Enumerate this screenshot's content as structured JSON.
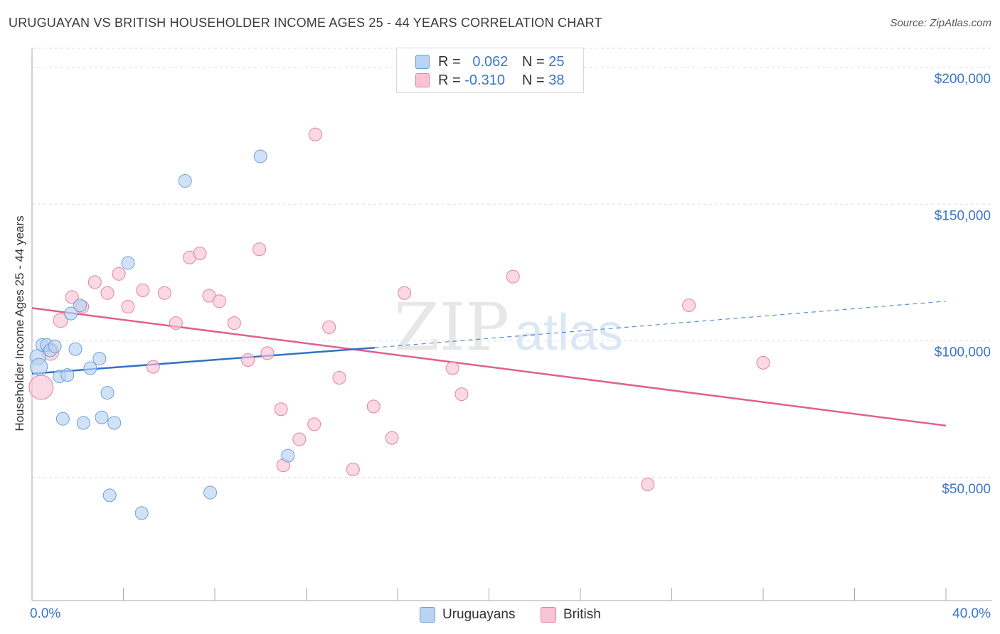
{
  "title": "URUGUAYAN VS BRITISH HOUSEHOLDER INCOME AGES 25 - 44 YEARS CORRELATION CHART",
  "source": "Source: ZipAtlas.com",
  "watermark": {
    "zip": "ZIP",
    "atlas": "atlas"
  },
  "colors": {
    "blue_fill": "#b9d3f2",
    "blue_stroke": "#6d9fd8",
    "blue_line": "#3272c4",
    "pink_fill": "#f8c4d5",
    "pink_stroke": "#e87fa2",
    "pink_line": "#e0608e",
    "axis_text": "#3b75c9",
    "grid": "#dddddd"
  },
  "legend_top": [
    {
      "r_label": "R =",
      "r_value": "0.062",
      "n_label": "N =",
      "n_value": "25"
    },
    {
      "r_label": "R =",
      "r_value": "-0.310",
      "n_label": "N =",
      "n_value": "38"
    }
  ],
  "legend_bottom": [
    "Uruguayans",
    "British"
  ],
  "chart_data": {
    "type": "scatter",
    "title": "URUGUAYAN VS BRITISH HOUSEHOLDER INCOME AGES 25 - 44 YEARS CORRELATION CHART",
    "xlabel": "",
    "ylabel": "Householder Income Ages 25 - 44 years",
    "xlim": [
      0,
      40
    ],
    "ylim": [
      5000,
      207000
    ],
    "x_tick_labels": [
      "0.0%",
      "40.0%"
    ],
    "y_ticks": [
      {
        "value": 200000,
        "label": "$200,000"
      },
      {
        "value": 150000,
        "label": "$150,000"
      },
      {
        "value": 100000,
        "label": "$100,000"
      },
      {
        "value": 50000,
        "label": "$50,000"
      }
    ],
    "grid": true,
    "series": [
      {
        "name": "Uruguayans",
        "r": 0.062,
        "n": 25,
        "trend": {
          "x0": 0,
          "y0": 88000,
          "x1": 15.0,
          "y1": 97500,
          "dash_x1": 40,
          "dash_y1": 114500
        },
        "points": [
          {
            "x": 0.25,
            "y": 94000,
            "r": 11
          },
          {
            "x": 0.3,
            "y": 90500,
            "r": 12
          },
          {
            "x": 0.45,
            "y": 98500,
            "r": 9
          },
          {
            "x": 0.65,
            "y": 98500,
            "r": 9
          },
          {
            "x": 0.8,
            "y": 96500,
            "r": 9
          },
          {
            "x": 1.0,
            "y": 98000,
            "r": 9
          },
          {
            "x": 1.2,
            "y": 87000,
            "r": 9
          },
          {
            "x": 1.35,
            "y": 71500,
            "r": 9
          },
          {
            "x": 1.55,
            "y": 87500,
            "r": 9
          },
          {
            "x": 1.7,
            "y": 110000,
            "r": 9
          },
          {
            "x": 1.9,
            "y": 97000,
            "r": 9
          },
          {
            "x": 2.1,
            "y": 113000,
            "r": 9
          },
          {
            "x": 2.25,
            "y": 70000,
            "r": 9
          },
          {
            "x": 2.55,
            "y": 90000,
            "r": 9
          },
          {
            "x": 2.95,
            "y": 93500,
            "r": 9
          },
          {
            "x": 3.05,
            "y": 72000,
            "r": 9
          },
          {
            "x": 3.3,
            "y": 81000,
            "r": 9
          },
          {
            "x": 3.4,
            "y": 43500,
            "r": 9
          },
          {
            "x": 3.6,
            "y": 70000,
            "r": 9
          },
          {
            "x": 4.2,
            "y": 128500,
            "r": 9
          },
          {
            "x": 4.8,
            "y": 37000,
            "r": 9
          },
          {
            "x": 6.7,
            "y": 158500,
            "r": 9
          },
          {
            "x": 7.8,
            "y": 44500,
            "r": 9
          },
          {
            "x": 10.0,
            "y": 167500,
            "r": 9
          },
          {
            "x": 11.2,
            "y": 58000,
            "r": 9
          }
        ]
      },
      {
        "name": "British",
        "r": -0.31,
        "n": 38,
        "trend": {
          "x0": 0,
          "y0": 112000,
          "x1": 40,
          "y1": 69000
        },
        "points": [
          {
            "x": 0.4,
            "y": 83000,
            "r": 17
          },
          {
            "x": 0.8,
            "y": 96000,
            "r": 12
          },
          {
            "x": 1.25,
            "y": 107500,
            "r": 10
          },
          {
            "x": 1.75,
            "y": 116000,
            "r": 9
          },
          {
            "x": 2.2,
            "y": 112500,
            "r": 9
          },
          {
            "x": 2.75,
            "y": 121500,
            "r": 9
          },
          {
            "x": 3.3,
            "y": 117500,
            "r": 9
          },
          {
            "x": 3.8,
            "y": 124500,
            "r": 9
          },
          {
            "x": 4.2,
            "y": 112500,
            "r": 9
          },
          {
            "x": 4.85,
            "y": 118500,
            "r": 9
          },
          {
            "x": 5.3,
            "y": 90500,
            "r": 9
          },
          {
            "x": 5.8,
            "y": 117500,
            "r": 9
          },
          {
            "x": 6.3,
            "y": 106500,
            "r": 9
          },
          {
            "x": 6.9,
            "y": 130500,
            "r": 9
          },
          {
            "x": 7.35,
            "y": 132000,
            "r": 9
          },
          {
            "x": 7.75,
            "y": 116500,
            "r": 9
          },
          {
            "x": 8.2,
            "y": 114500,
            "r": 9
          },
          {
            "x": 8.85,
            "y": 106500,
            "r": 9
          },
          {
            "x": 9.45,
            "y": 93000,
            "r": 9
          },
          {
            "x": 9.95,
            "y": 133500,
            "r": 9
          },
          {
            "x": 10.3,
            "y": 95500,
            "r": 9
          },
          {
            "x": 10.9,
            "y": 75000,
            "r": 9
          },
          {
            "x": 11.0,
            "y": 54500,
            "r": 9
          },
          {
            "x": 11.7,
            "y": 64000,
            "r": 9
          },
          {
            "x": 12.35,
            "y": 69500,
            "r": 9
          },
          {
            "x": 12.4,
            "y": 175500,
            "r": 9
          },
          {
            "x": 13.0,
            "y": 105000,
            "r": 9
          },
          {
            "x": 13.45,
            "y": 86500,
            "r": 9
          },
          {
            "x": 14.05,
            "y": 53000,
            "r": 9
          },
          {
            "x": 14.95,
            "y": 76000,
            "r": 9
          },
          {
            "x": 15.75,
            "y": 64500,
            "r": 9
          },
          {
            "x": 16.3,
            "y": 117500,
            "r": 9
          },
          {
            "x": 18.4,
            "y": 90000,
            "r": 9
          },
          {
            "x": 18.8,
            "y": 80500,
            "r": 9
          },
          {
            "x": 21.05,
            "y": 123500,
            "r": 9
          },
          {
            "x": 26.95,
            "y": 47500,
            "r": 9
          },
          {
            "x": 28.75,
            "y": 113000,
            "r": 9
          },
          {
            "x": 32.0,
            "y": 92000,
            "r": 9
          }
        ]
      }
    ]
  }
}
